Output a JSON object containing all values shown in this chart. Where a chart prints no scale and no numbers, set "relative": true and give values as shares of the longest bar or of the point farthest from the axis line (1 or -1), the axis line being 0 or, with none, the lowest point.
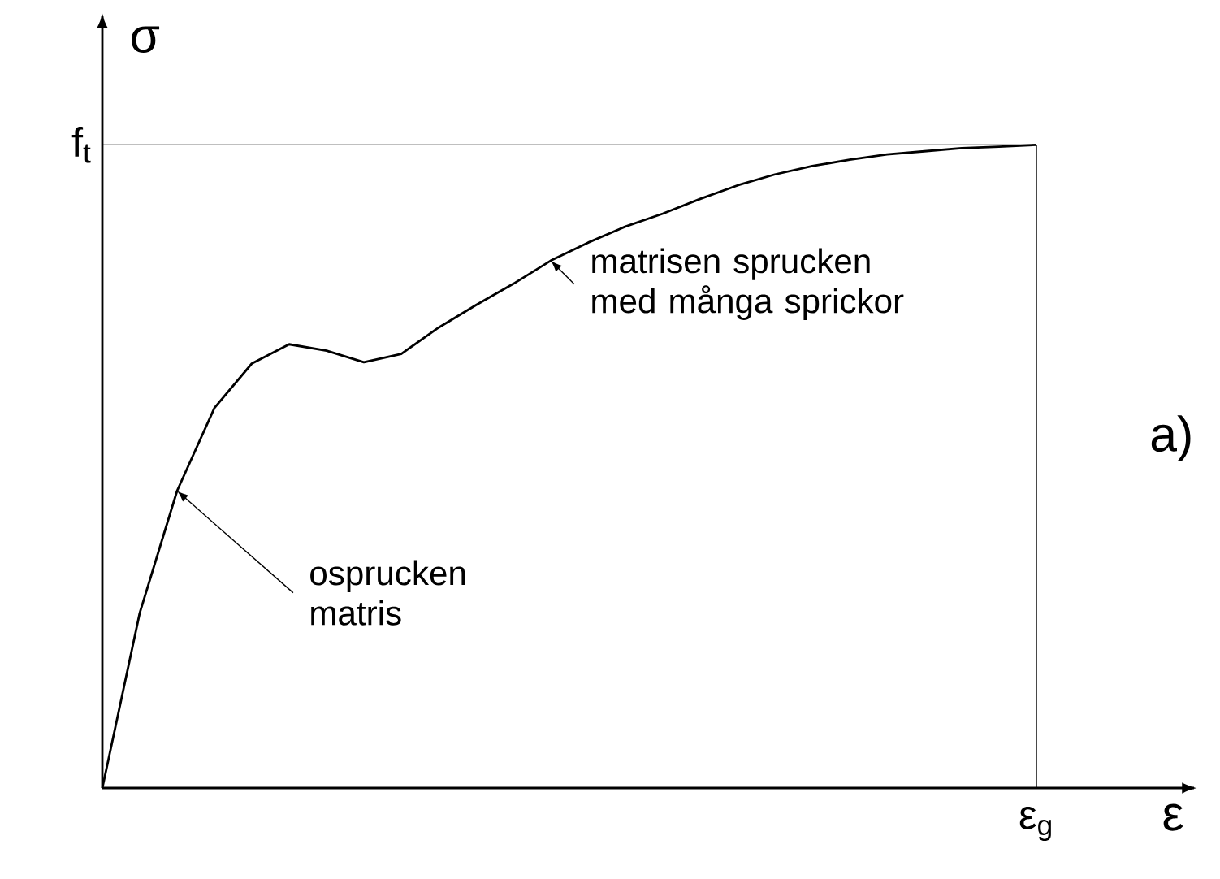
{
  "chart_data": {
    "type": "line",
    "relative": true,
    "xlabel": "ε",
    "ylabel": "σ",
    "categories": [
      null,
      null,
      null,
      null,
      null,
      null,
      null,
      null,
      null,
      null,
      null,
      null,
      null,
      null,
      null,
      null,
      null,
      null,
      null,
      null,
      null,
      null,
      null,
      null,
      null,
      null
    ],
    "series": [
      {
        "color": "#000000",
        "values": [
          0,
          0.272,
          0.462,
          0.591,
          0.66,
          0.69,
          0.68,
          0.662,
          0.675,
          0.716,
          0.751,
          0.784,
          0.82,
          0.848,
          0.873,
          0.893,
          0.916,
          0.937,
          0.954,
          0.967,
          0.977,
          0.985,
          0.99,
          0.995,
          0.997,
          1
        ]
      }
    ],
    "ref_lines": [
      {
        "axis": "y",
        "value": 1,
        "label": "f$_{t}$"
      },
      {
        "axis": "x",
        "label": "ε$_{g}$"
      }
    ],
    "annotations": [
      "matrisen sprucken med många sprickor",
      "osprucken matris",
      "a)"
    ]
  }
}
